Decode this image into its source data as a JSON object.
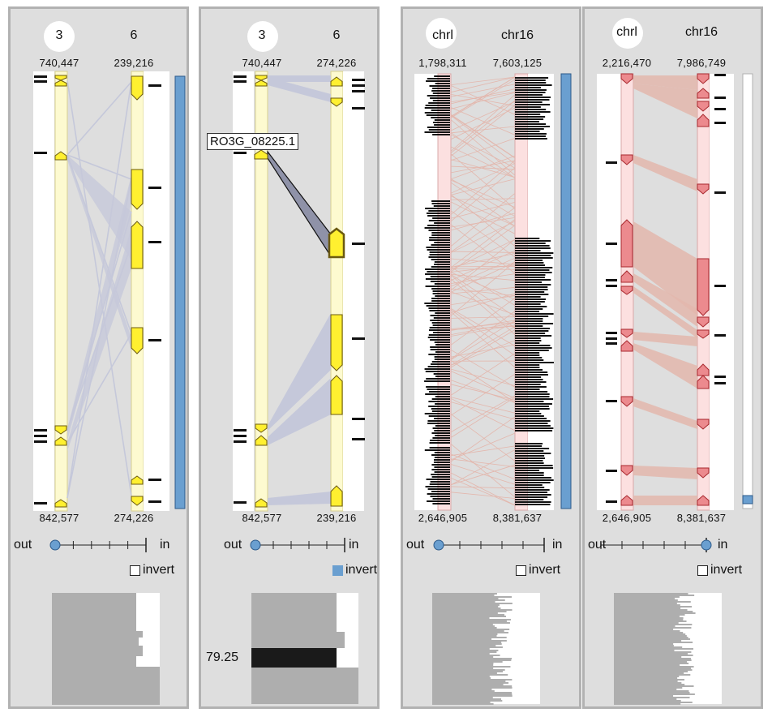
{
  "panels": [
    {
      "top_left_chrom": "3",
      "top_right_chrom": "6",
      "top_left_coord": "740,447",
      "top_right_coord": "239,216",
      "bottom_left_coord": "842,577",
      "bottom_right_coord": "274,226",
      "zoom_out_label": "out",
      "zoom_in_label": "in",
      "invert_label": "invert",
      "invert_checked": false,
      "zoom_level": 0.0,
      "scroll_fraction": 1.0
    },
    {
      "top_left_chrom": "3",
      "top_right_chrom": "6",
      "top_left_coord": "740,447",
      "top_right_coord": "274,226",
      "bottom_left_coord": "842,577",
      "bottom_right_coord": "239,216",
      "zoom_out_label": "out",
      "zoom_in_label": "in",
      "invert_label": "invert",
      "invert_checked": true,
      "gene_tooltip": "RO3G_08225.1",
      "histogram_readout": "79.25",
      "zoom_level": 0.0,
      "scroll_fraction": 1.0
    },
    {
      "top_left_chrom": "chrl",
      "top_right_chrom": "chr16",
      "top_left_coord": "1,798,311",
      "top_right_coord": "7,603,125",
      "bottom_left_coord": "2,646,905",
      "bottom_right_coord": "8,381,637",
      "zoom_out_label": "out",
      "zoom_in_label": "in",
      "invert_label": "invert",
      "invert_checked": false,
      "zoom_level": 0.0,
      "scroll_fraction": 1.0
    },
    {
      "top_left_chrom": "chrl",
      "top_right_chrom": "chr16",
      "top_left_coord": "2,216,470",
      "top_right_coord": "7,986,749",
      "bottom_left_coord": "2,646,905",
      "bottom_right_coord": "8,381,637",
      "zoom_out_label": "out",
      "zoom_in_label": "in",
      "invert_label": "invert",
      "invert_checked": false,
      "zoom_level": 1.0,
      "scroll_fraction": 0.02
    }
  ],
  "colors": {
    "panel_bg": "#dedede",
    "yellow_gene": "#fff030",
    "yellow_track": "#fdfad0",
    "pink_gene": "#ec8a8e",
    "pink_track": "#fce0e0",
    "link_gray": "#c5c8da",
    "link_pink": "#e3b7ad",
    "scrollbar": "#6a9fd0",
    "histogram_gray": "#aeaeae"
  }
}
